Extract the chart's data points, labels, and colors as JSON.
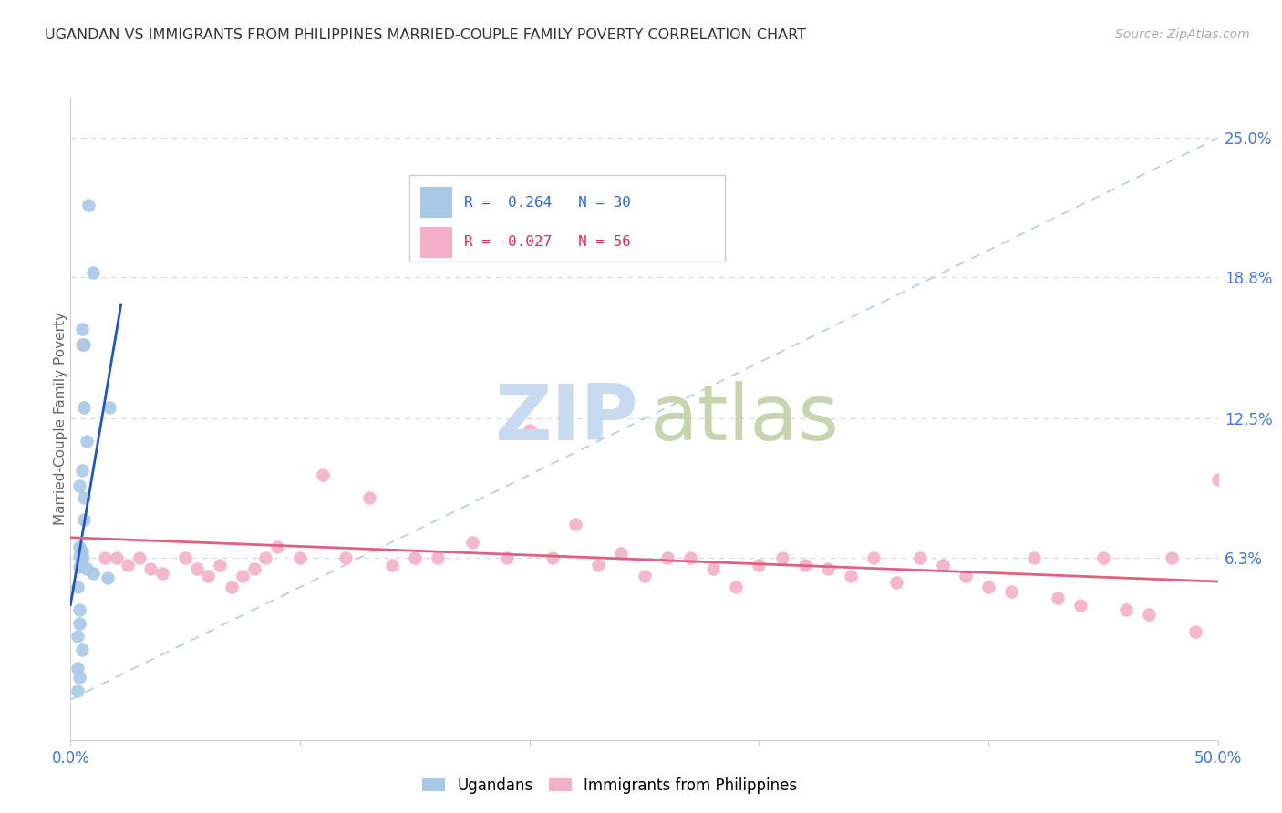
{
  "title": "UGANDAN VS IMMIGRANTS FROM PHILIPPINES MARRIED-COUPLE FAMILY POVERTY CORRELATION CHART",
  "source": "Source: ZipAtlas.com",
  "ylabel": "Married-Couple Family Poverty",
  "xlim": [
    0.0,
    0.5
  ],
  "ylim": [
    -0.018,
    0.268
  ],
  "yticks_right": [
    0.063,
    0.125,
    0.188,
    0.25
  ],
  "yticklabels_right": [
    "6.3%",
    "12.5%",
    "18.8%",
    "25.0%"
  ],
  "ugandan_color": "#a8c8e8",
  "philippines_color": "#f4b0c8",
  "trend_ugandan_color": "#2255bb",
  "trend_philippines_color": "#e06080",
  "diagonal_color": "#b8cce0",
  "background_color": "#ffffff",
  "ugandan_x": [
    0.008,
    0.01,
    0.005,
    0.006,
    0.006,
    0.007,
    0.005,
    0.004,
    0.006,
    0.006,
    0.004,
    0.005,
    0.005,
    0.004,
    0.005,
    0.005,
    0.005,
    0.004,
    0.007,
    0.01,
    0.016,
    0.017,
    0.003,
    0.004,
    0.004,
    0.003,
    0.005,
    0.003,
    0.004,
    0.003
  ],
  "ugandan_y": [
    0.22,
    0.19,
    0.165,
    0.158,
    0.13,
    0.115,
    0.102,
    0.095,
    0.09,
    0.08,
    0.068,
    0.066,
    0.064,
    0.064,
    0.063,
    0.063,
    0.061,
    0.059,
    0.058,
    0.056,
    0.054,
    0.13,
    0.05,
    0.04,
    0.034,
    0.028,
    0.022,
    0.014,
    0.01,
    0.004
  ],
  "philippines_x": [
    0.005,
    0.015,
    0.02,
    0.025,
    0.03,
    0.035,
    0.04,
    0.05,
    0.055,
    0.06,
    0.065,
    0.07,
    0.075,
    0.08,
    0.085,
    0.09,
    0.1,
    0.11,
    0.12,
    0.13,
    0.14,
    0.15,
    0.16,
    0.175,
    0.19,
    0.2,
    0.21,
    0.22,
    0.23,
    0.24,
    0.25,
    0.26,
    0.27,
    0.28,
    0.29,
    0.3,
    0.31,
    0.32,
    0.33,
    0.34,
    0.35,
    0.36,
    0.37,
    0.38,
    0.39,
    0.4,
    0.41,
    0.42,
    0.43,
    0.44,
    0.45,
    0.46,
    0.47,
    0.48,
    0.49,
    0.5
  ],
  "philippines_y": [
    0.158,
    0.063,
    0.063,
    0.06,
    0.063,
    0.058,
    0.056,
    0.063,
    0.058,
    0.055,
    0.06,
    0.05,
    0.055,
    0.058,
    0.063,
    0.068,
    0.063,
    0.1,
    0.063,
    0.09,
    0.06,
    0.063,
    0.063,
    0.07,
    0.063,
    0.12,
    0.063,
    0.078,
    0.06,
    0.065,
    0.055,
    0.063,
    0.063,
    0.058,
    0.05,
    0.06,
    0.063,
    0.06,
    0.058,
    0.055,
    0.063,
    0.052,
    0.063,
    0.06,
    0.055,
    0.05,
    0.048,
    0.063,
    0.045,
    0.042,
    0.063,
    0.04,
    0.038,
    0.063,
    0.03,
    0.098
  ]
}
